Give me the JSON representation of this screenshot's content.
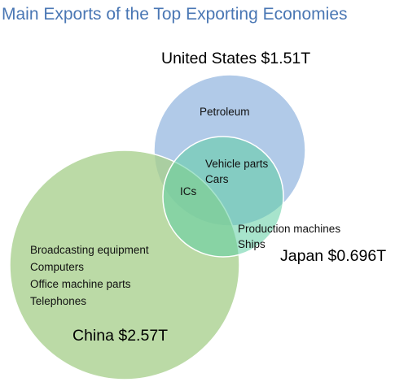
{
  "title": "Main Exports of the Top Exporting Economies",
  "sets": {
    "us": {
      "label": "United States $1.51T",
      "exports": [
        "Petroleum"
      ],
      "color": "#a9c4e6"
    },
    "japan": {
      "label": "Japan $0.696T",
      "exports": [
        "Production machines",
        "Ships"
      ],
      "color": "#a6dfc6"
    },
    "china": {
      "label": "China $2.57T",
      "exports": [
        "Broadcasting equipment",
        "Computers",
        "Office machine parts",
        "Telephones"
      ],
      "color": "#b2d59e"
    }
  },
  "overlaps": {
    "us_japan": [
      "Vehicle parts",
      "Cars"
    ],
    "us_japan_china": [
      "ICs"
    ]
  }
}
